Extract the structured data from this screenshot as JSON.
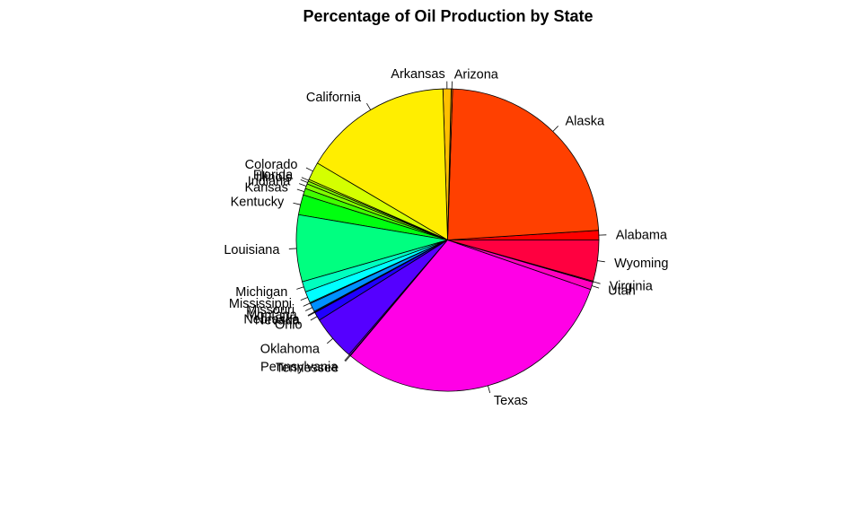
{
  "chart_data": {
    "type": "pie",
    "title": "Percentage of Oil Production by State",
    "slices": [
      {
        "label": "Alabama",
        "value": 1.0,
        "color": "#FF0000"
      },
      {
        "label": "Alaska",
        "value": 23.0,
        "color": "#FF4000"
      },
      {
        "label": "Arizona",
        "value": 0.15,
        "color": "#FF8000"
      },
      {
        "label": "Arkansas",
        "value": 0.85,
        "color": "#FFBF00"
      },
      {
        "label": "California",
        "value": 15.7,
        "color": "#FFEE00"
      },
      {
        "label": "Colorado",
        "value": 1.9,
        "color": "#D4FF00"
      },
      {
        "label": "Florida",
        "value": 0.2,
        "color": "#BFFF00"
      },
      {
        "label": "Illinois",
        "value": 0.3,
        "color": "#80FF00"
      },
      {
        "label": "Indiana",
        "value": 0.5,
        "color": "#80FF00"
      },
      {
        "label": "Kansas",
        "value": 0.7,
        "color": "#40FF00"
      },
      {
        "label": "Kentucky",
        "value": 2.1,
        "color": "#00FF10"
      },
      {
        "label": "Louisiana",
        "value": 7.0,
        "color": "#00FF80"
      },
      {
        "label": "Michigan",
        "value": 1.1,
        "color": "#00FFBF"
      },
      {
        "label": "Mississippi",
        "value": 1.2,
        "color": "#00FFFF"
      },
      {
        "label": "Missouri",
        "value": 0.1,
        "color": "#00CFFF"
      },
      {
        "label": "Montana",
        "value": 0.9,
        "color": "#0090FF"
      },
      {
        "label": "Nebraska",
        "value": 0.1,
        "color": "#0060FF"
      },
      {
        "label": "Nevada",
        "value": 0.05,
        "color": "#0040FF"
      },
      {
        "label": "Ohio",
        "value": 0.9,
        "color": "#2000FF"
      },
      {
        "label": "Oklahoma",
        "value": 4.7,
        "color": "#5500FF"
      },
      {
        "label": "Pennsylvania",
        "value": 0.15,
        "color": "#9000FF"
      },
      {
        "label": "Tennessee",
        "value": 0.05,
        "color": "#BF00FF"
      },
      {
        "label": "Texas",
        "value": 30.2,
        "color": "#FF00E6"
      },
      {
        "label": "Utah",
        "value": 0.8,
        "color": "#FF00BF"
      },
      {
        "label": "Virginia",
        "value": 0.1,
        "color": "#FF0080"
      },
      {
        "label": "Wyoming",
        "value": 4.3,
        "color": "#FF0040"
      }
    ]
  }
}
